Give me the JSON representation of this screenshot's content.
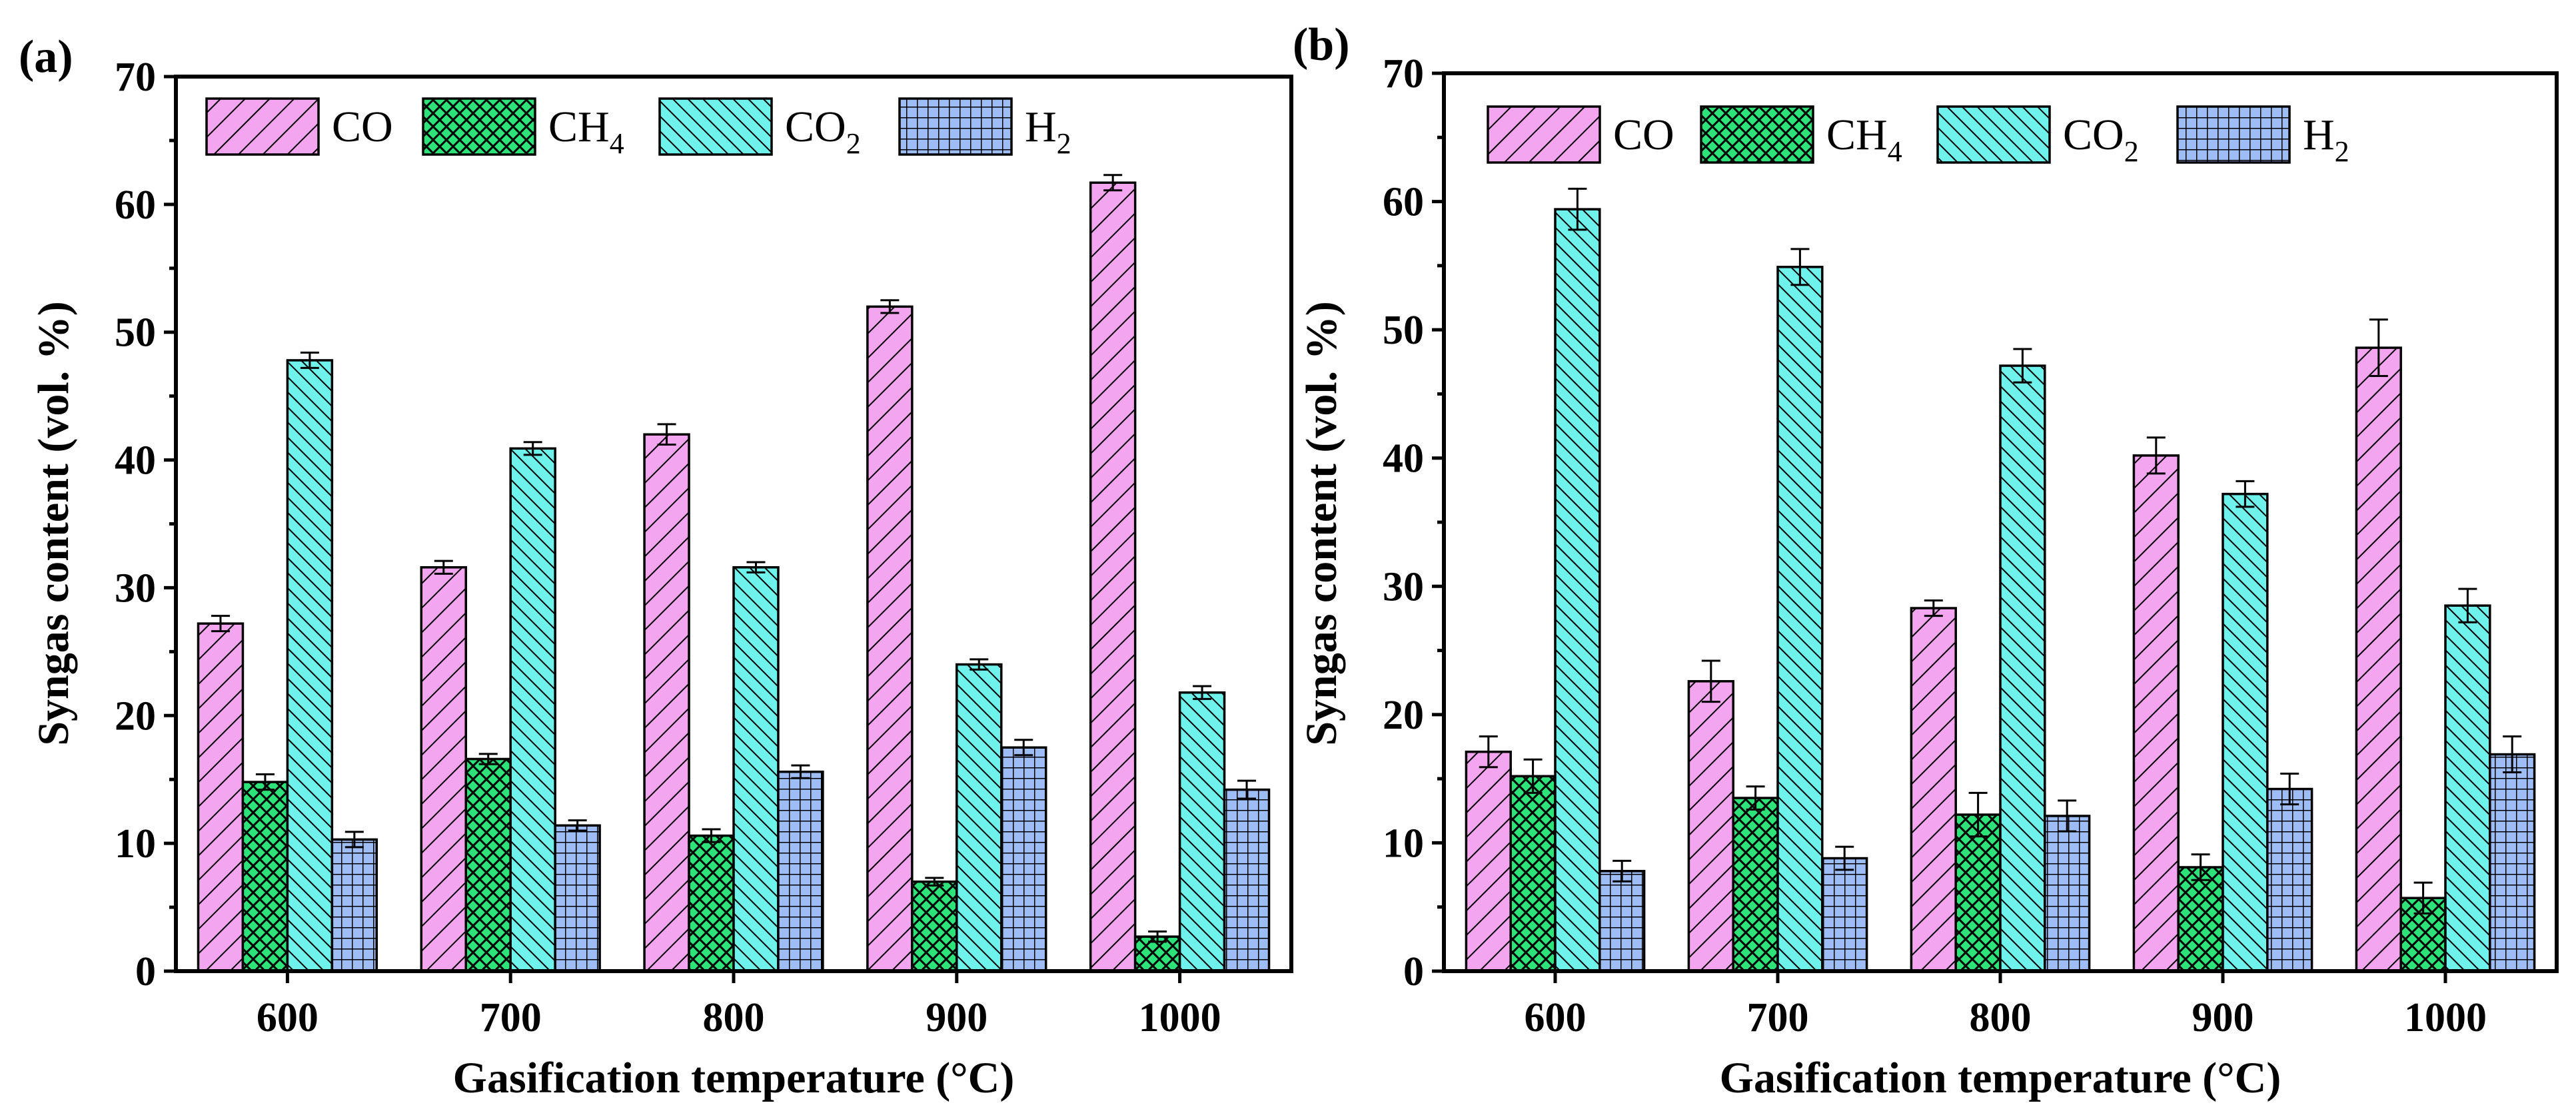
{
  "chart_data": [
    {
      "type": "bar",
      "panel_label": "(a)",
      "categories": [
        "600",
        "700",
        "800",
        "900",
        "1000"
      ],
      "xlabel": "Gasification temperature (°C)",
      "ylabel": "Syngas content (vol. %)",
      "ylim": [
        0,
        70
      ],
      "yticks": [
        "0",
        "10",
        "20",
        "30",
        "40",
        "50",
        "60",
        "70"
      ],
      "grid": false,
      "legend_position": "top-left",
      "series": [
        {
          "name": "CO",
          "base": "CO",
          "subscript": "",
          "values": [
            27.2,
            31.6,
            42.0,
            52.0,
            61.7
          ],
          "errors": [
            0.6,
            0.5,
            0.8,
            0.5,
            0.6
          ]
        },
        {
          "name": "CH4",
          "base": "CH",
          "subscript": "4",
          "values": [
            14.8,
            16.6,
            10.6,
            7.0,
            2.7
          ],
          "errors": [
            0.6,
            0.4,
            0.5,
            0.3,
            0.4
          ]
        },
        {
          "name": "CO2",
          "base": "CO",
          "subscript": "2",
          "values": [
            47.8,
            40.9,
            31.6,
            24.0,
            21.8
          ],
          "errors": [
            0.6,
            0.5,
            0.4,
            0.4,
            0.5
          ]
        },
        {
          "name": "H2",
          "base": "H",
          "subscript": "2",
          "values": [
            10.3,
            11.4,
            15.6,
            17.5,
            14.2
          ],
          "errors": [
            0.6,
            0.4,
            0.5,
            0.6,
            0.7
          ]
        }
      ]
    },
    {
      "type": "bar",
      "panel_label": "(b)",
      "categories": [
        "600",
        "700",
        "800",
        "900",
        "1000"
      ],
      "xlabel": "Gasification temperature (°C)",
      "ylabel": "Syngas content (vol. %)",
      "ylim": [
        0,
        70
      ],
      "yticks": [
        "0",
        "10",
        "20",
        "30",
        "40",
        "50",
        "60",
        "70"
      ],
      "grid": false,
      "legend_position": "top-left",
      "series": [
        {
          "name": "CO",
          "base": "CO",
          "subscript": "",
          "values": [
            17.1,
            22.6,
            28.3,
            40.2,
            48.6
          ],
          "errors": [
            1.2,
            1.6,
            0.6,
            1.4,
            2.2
          ]
        },
        {
          "name": "CH4",
          "base": "CH",
          "subscript": "4",
          "values": [
            15.2,
            13.5,
            12.2,
            8.1,
            5.7
          ],
          "errors": [
            1.3,
            0.9,
            1.7,
            1.0,
            1.2
          ]
        },
        {
          "name": "CO2",
          "base": "CO",
          "subscript": "2",
          "values": [
            59.4,
            54.9,
            47.2,
            37.2,
            28.5
          ],
          "errors": [
            1.6,
            1.4,
            1.3,
            1.0,
            1.3
          ]
        },
        {
          "name": "H2",
          "base": "H",
          "subscript": "2",
          "values": [
            7.8,
            8.8,
            12.1,
            14.2,
            16.9
          ],
          "errors": [
            0.8,
            0.9,
            1.2,
            1.2,
            1.4
          ]
        }
      ]
    }
  ],
  "series_colors": [
    "#f3a6ef",
    "#2ee27a",
    "#6ff2ec",
    "#9ebdf4"
  ],
  "series_patterns": [
    "hatch-wide",
    "crosshatch-diagonal",
    "hatch-dense",
    "grid"
  ]
}
